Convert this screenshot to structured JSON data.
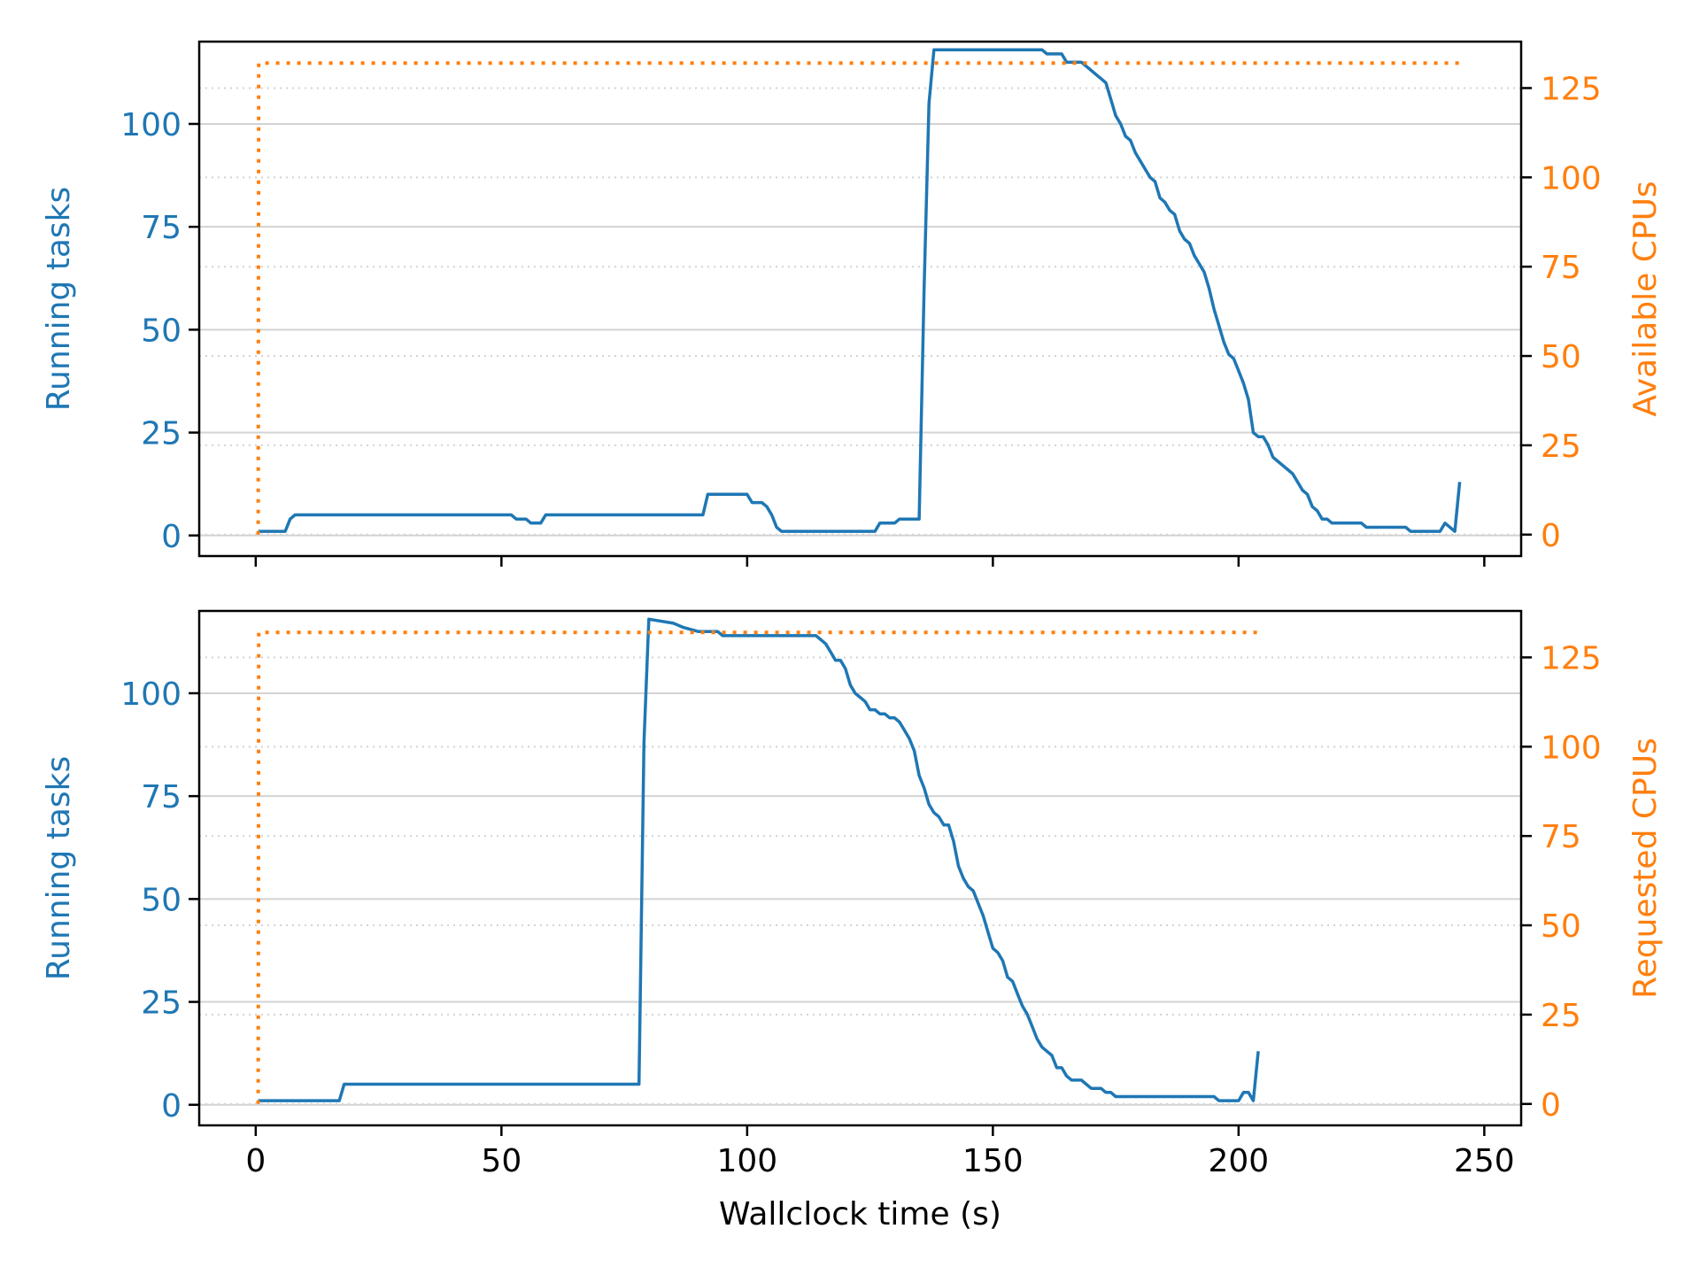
{
  "colors": {
    "left": "#1f77b4",
    "right": "#ff7f0e",
    "grid": "#d3d3d3",
    "axis": "#000000"
  },
  "chart_data": [
    {
      "type": "line",
      "xlabel": "",
      "ylabel": "Running tasks",
      "y2label": "Available CPUs",
      "xlim": [
        -11.5,
        257.5
      ],
      "ylim": [
        -5,
        120
      ],
      "y2lim": [
        -6,
        138
      ],
      "xticks": [
        0,
        50,
        100,
        150,
        200,
        250
      ],
      "yticks": [
        0,
        25,
        50,
        75,
        100
      ],
      "y2ticks": [
        0,
        25,
        50,
        75,
        100,
        125
      ],
      "grid": true,
      "series": [
        {
          "axis": "left",
          "style": "solid",
          "x": [
            0.5,
            6,
            7,
            8,
            20,
            40,
            52,
            53,
            55,
            56,
            58,
            59,
            60,
            70,
            80,
            91,
            92,
            100,
            101,
            103,
            104,
            105,
            106,
            107,
            110,
            120,
            126,
            127,
            130,
            131,
            135,
            136,
            137,
            138,
            145,
            150,
            160,
            161,
            164,
            165,
            168,
            170,
            171,
            172,
            173,
            174,
            175,
            176,
            177,
            178,
            179,
            180,
            181,
            182,
            183,
            184,
            185,
            186,
            187,
            188,
            189,
            190,
            191,
            192,
            193,
            194,
            195,
            196,
            197,
            198,
            199,
            200,
            201,
            202,
            203,
            204,
            205,
            206,
            207,
            208,
            209,
            210,
            211,
            212,
            213,
            214,
            215,
            216,
            217,
            218,
            219,
            220,
            225,
            226,
            230,
            234,
            235,
            240,
            241,
            242,
            244,
            245
          ],
          "y": [
            1,
            1,
            4,
            5,
            5,
            5,
            5,
            4,
            4,
            3,
            3,
            5,
            5,
            5,
            5,
            5,
            10,
            10,
            8,
            8,
            7,
            5,
            2,
            1,
            1,
            1,
            1,
            3,
            3,
            4,
            4,
            60,
            105,
            118,
            118,
            118,
            118,
            117,
            117,
            115,
            115,
            113,
            112,
            111,
            110,
            106,
            102,
            100,
            97,
            96,
            93,
            91,
            89,
            87,
            86,
            82,
            81,
            79,
            78,
            74,
            72,
            71,
            68,
            66,
            64,
            60,
            55,
            51,
            47,
            44,
            43,
            40,
            37,
            33,
            25,
            24,
            24,
            22,
            19,
            18,
            17,
            16,
            15,
            13,
            11,
            10,
            7,
            6,
            4,
            4,
            3,
            3,
            3,
            2,
            2,
            2,
            1,
            1,
            1,
            3,
            1,
            13
          ]
        },
        {
          "axis": "right",
          "style": "dotted",
          "x": [
            0.5,
            0.6,
            1.5,
            245
          ],
          "y": [
            0,
            132,
            132,
            132
          ]
        }
      ]
    },
    {
      "type": "line",
      "xlabel": "Wallclock time (s)",
      "ylabel": "Running tasks",
      "y2label": "Requested CPUs",
      "xlim": [
        -11.5,
        257.5
      ],
      "ylim": [
        -5,
        120
      ],
      "y2lim": [
        -6,
        138
      ],
      "xticks": [
        0,
        50,
        100,
        150,
        200,
        250
      ],
      "xticklabels": [
        "0",
        "50",
        "100",
        "150",
        "200",
        "250"
      ],
      "yticks": [
        0,
        25,
        50,
        75,
        100
      ],
      "y2ticks": [
        0,
        25,
        50,
        75,
        100,
        125
      ],
      "grid": true,
      "series": [
        {
          "axis": "left",
          "style": "solid",
          "x": [
            0.5,
            17,
            18,
            19,
            40,
            60,
            78,
            79,
            80,
            85,
            87,
            90,
            94,
            95,
            100,
            105,
            110,
            114,
            115,
            116,
            117,
            118,
            119,
            120,
            121,
            122,
            123,
            124,
            125,
            126,
            127,
            128,
            129,
            130,
            131,
            132,
            133,
            134,
            135,
            136,
            137,
            138,
            139,
            140,
            141,
            142,
            143,
            144,
            145,
            146,
            147,
            148,
            149,
            150,
            151,
            152,
            153,
            154,
            155,
            156,
            157,
            158,
            159,
            160,
            161,
            162,
            163,
            164,
            165,
            166,
            167,
            168,
            169,
            170,
            171,
            172,
            173,
            174,
            175,
            176,
            177,
            178,
            179,
            180,
            181,
            182,
            185,
            190,
            195,
            196,
            197,
            200,
            201,
            202,
            203,
            204
          ],
          "y": [
            1,
            1,
            5,
            5,
            5,
            5,
            5,
            88,
            118,
            117,
            116,
            115,
            115,
            114,
            114,
            114,
            114,
            114,
            113,
            112,
            110,
            108,
            108,
            106,
            102,
            100,
            99,
            98,
            96,
            96,
            95,
            95,
            94,
            94,
            93,
            91,
            89,
            86,
            80,
            77,
            73,
            71,
            70,
            68,
            68,
            64,
            58,
            55,
            53,
            52,
            49,
            46,
            42,
            38,
            37,
            35,
            31,
            30,
            27,
            24,
            22,
            19,
            16,
            14,
            13,
            12,
            9,
            9,
            7,
            6,
            6,
            6,
            5,
            4,
            4,
            4,
            3,
            3,
            2,
            2,
            2,
            2,
            2,
            2,
            2,
            2,
            2,
            2,
            2,
            1,
            1,
            1,
            3,
            3,
            1,
            13
          ]
        },
        {
          "axis": "right",
          "style": "dotted",
          "x": [
            0.5,
            0.6,
            1.5,
            204
          ],
          "y": [
            0,
            132,
            132,
            132
          ]
        }
      ]
    }
  ]
}
